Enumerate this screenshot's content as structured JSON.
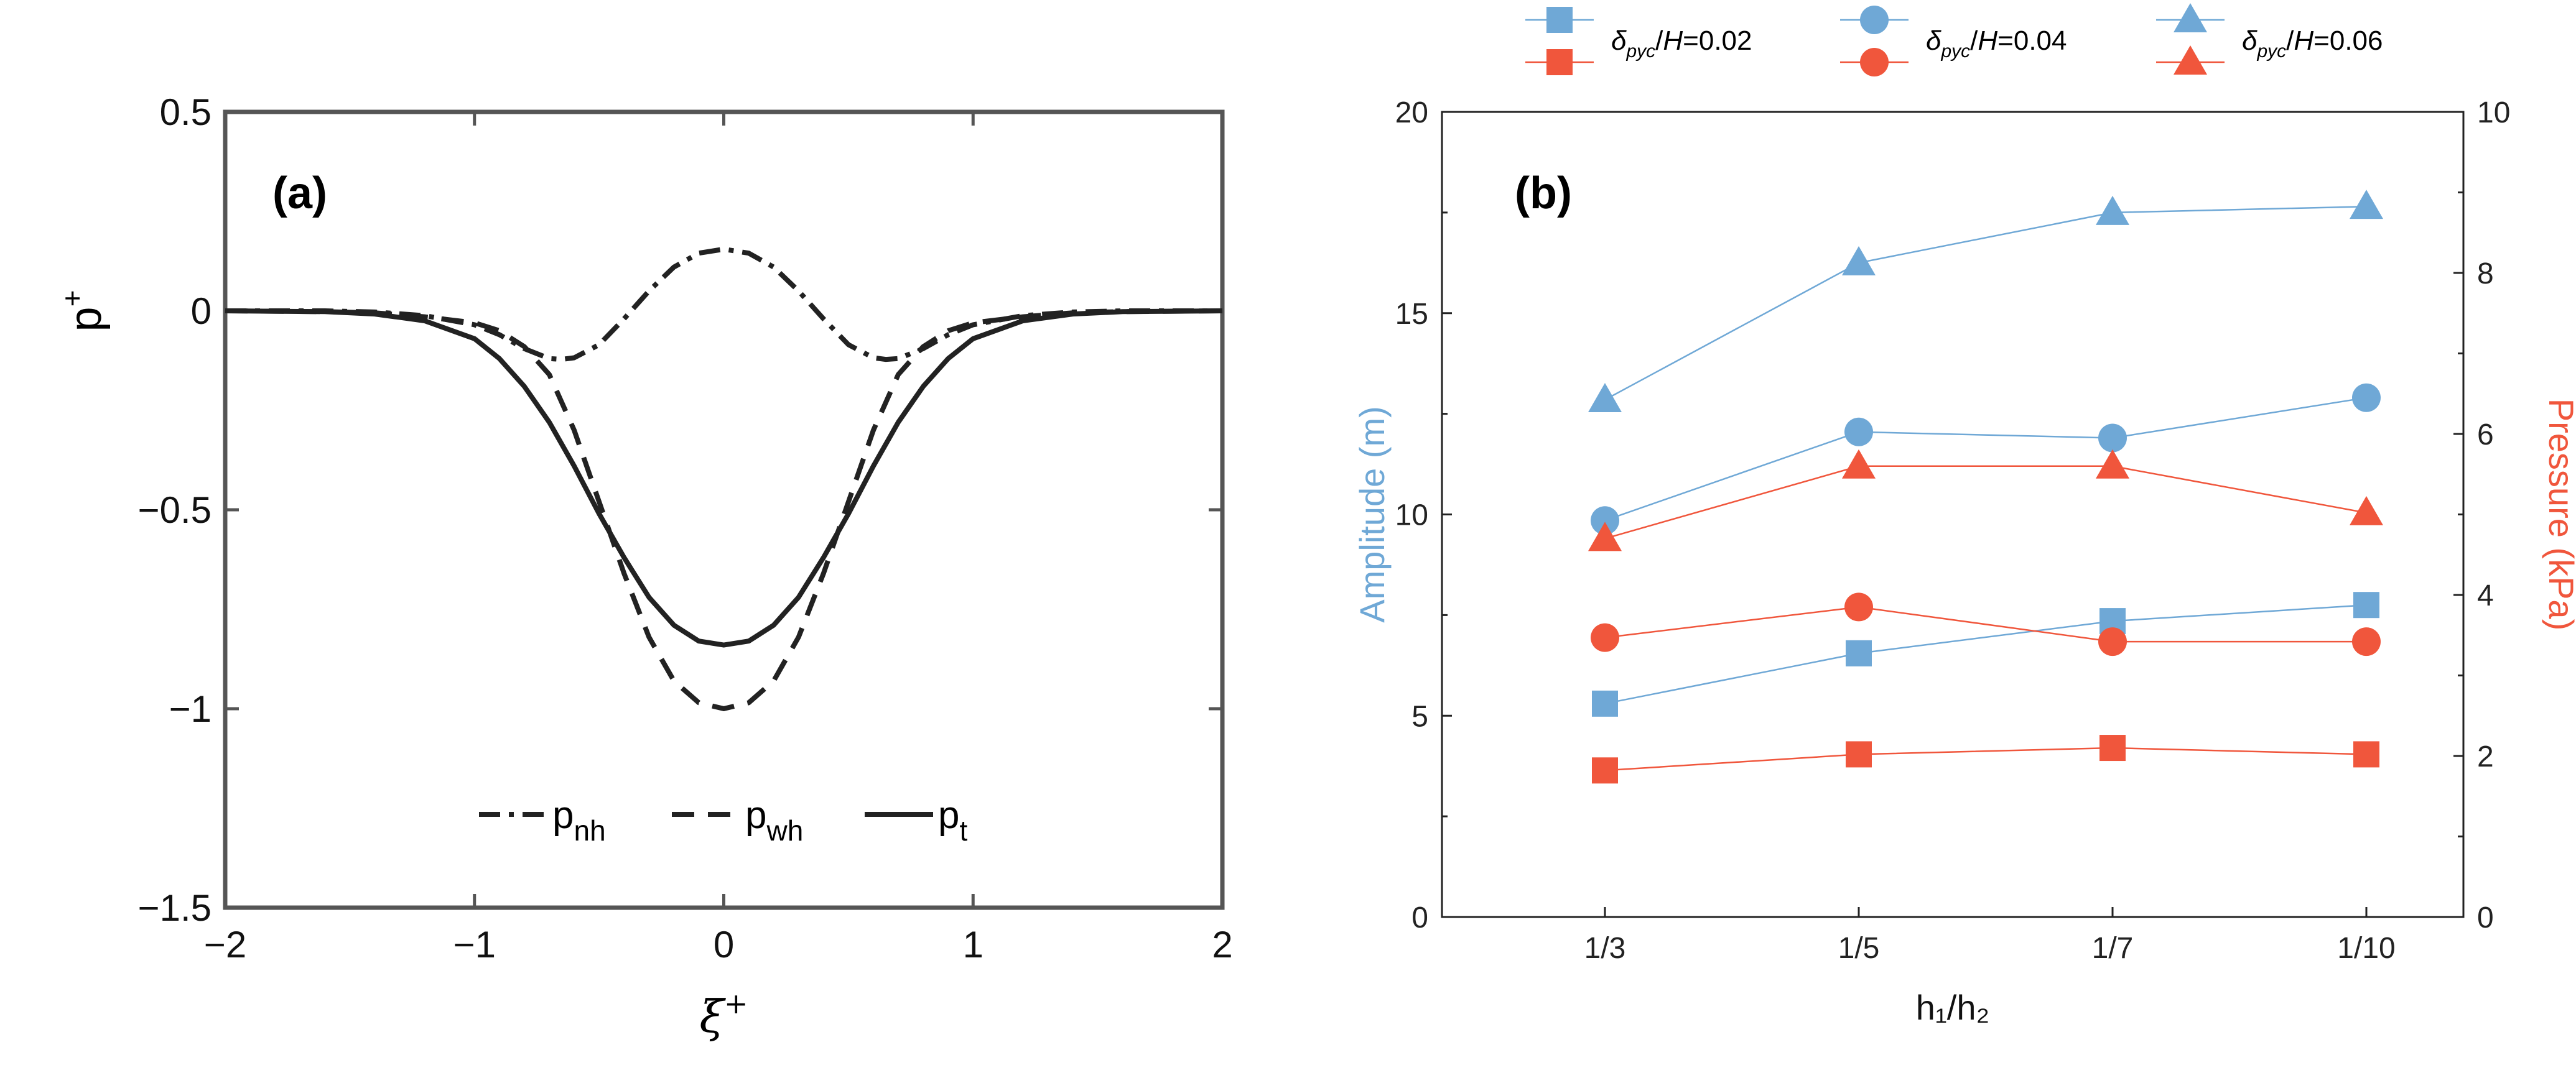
{
  "chart_data": [
    {
      "panel": "(a)",
      "type": "line",
      "xlabel": "ξ",
      "xlabel_sup": "+",
      "ylabel": "p",
      "ylabel_sup": "+",
      "xlim": [
        -2,
        2
      ],
      "ylim": [
        -1.5,
        0.5
      ],
      "xticks": [
        -2,
        -1,
        0,
        1,
        2
      ],
      "xtick_labels": [
        "−2",
        "−1",
        "0",
        "1",
        "2"
      ],
      "yticks": [
        0.5,
        0,
        -0.5,
        -1,
        -1.5
      ],
      "ytick_labels": [
        "0.5",
        "0",
        "−0.5",
        "−1",
        "−1.5"
      ],
      "legend": [
        {
          "base": "p",
          "sub": "nh"
        },
        {
          "base": "p",
          "sub": "wh"
        },
        {
          "base": "p",
          "sub": "t"
        }
      ],
      "series": [
        {
          "name": "p_nh",
          "style": "dashdot",
          "x": [
            -2,
            -1.6,
            -1.4,
            -1.2,
            -1.0,
            -0.9,
            -0.8,
            -0.7,
            -0.65,
            -0.6,
            -0.5,
            -0.4,
            -0.3,
            -0.2,
            -0.1,
            0,
            0.1,
            0.2,
            0.3,
            0.4,
            0.5,
            0.6,
            0.65,
            0.7,
            0.8,
            0.9,
            1.0,
            1.2,
            1.4,
            1.6,
            2
          ],
          "y": [
            0,
            0,
            -0.003,
            -0.012,
            -0.035,
            -0.06,
            -0.095,
            -0.12,
            -0.122,
            -0.118,
            -0.085,
            -0.02,
            0.05,
            0.11,
            0.145,
            0.155,
            0.145,
            0.11,
            0.05,
            -0.02,
            -0.085,
            -0.118,
            -0.122,
            -0.12,
            -0.095,
            -0.06,
            -0.035,
            -0.012,
            -0.003,
            0,
            0
          ]
        },
        {
          "name": "p_wh",
          "style": "dashed",
          "x": [
            -2,
            -1.6,
            -1.4,
            -1.2,
            -1.0,
            -0.9,
            -0.8,
            -0.7,
            -0.6,
            -0.5,
            -0.4,
            -0.3,
            -0.2,
            -0.1,
            0,
            0.1,
            0.2,
            0.3,
            0.4,
            0.5,
            0.6,
            0.7,
            0.8,
            0.9,
            1.0,
            1.2,
            1.4,
            1.6,
            2
          ],
          "y": [
            0,
            -0.002,
            -0.005,
            -0.015,
            -0.03,
            -0.05,
            -0.09,
            -0.16,
            -0.3,
            -0.48,
            -0.66,
            -0.82,
            -0.93,
            -0.985,
            -1.0,
            -0.985,
            -0.93,
            -0.82,
            -0.66,
            -0.48,
            -0.3,
            -0.16,
            -0.09,
            -0.05,
            -0.03,
            -0.015,
            -0.005,
            -0.002,
            0
          ]
        },
        {
          "name": "p_t",
          "style": "solid",
          "x": [
            -2,
            -1.6,
            -1.4,
            -1.2,
            -1.0,
            -0.9,
            -0.8,
            -0.7,
            -0.6,
            -0.5,
            -0.4,
            -0.3,
            -0.2,
            -0.1,
            0,
            0.1,
            0.2,
            0.3,
            0.4,
            0.5,
            0.6,
            0.7,
            0.8,
            0.9,
            1.0,
            1.2,
            1.4,
            1.6,
            2
          ],
          "y": [
            0,
            -0.002,
            -0.008,
            -0.025,
            -0.07,
            -0.12,
            -0.19,
            -0.28,
            -0.39,
            -0.51,
            -0.62,
            -0.72,
            -0.79,
            -0.83,
            -0.84,
            -0.83,
            -0.79,
            -0.72,
            -0.62,
            -0.51,
            -0.39,
            -0.28,
            -0.19,
            -0.12,
            -0.07,
            -0.025,
            -0.008,
            -0.002,
            0
          ]
        }
      ]
    },
    {
      "panel": "(b)",
      "type": "line",
      "xlabel": "h₁/h₂",
      "ylabel_left": "Amplitude (m)",
      "ylabel_right": "Pressure (kPa)",
      "categories": [
        "1/3",
        "1/5",
        "1/7",
        "1/10"
      ],
      "ylim_left": [
        0,
        20
      ],
      "ylim_right": [
        0,
        10
      ],
      "yticks_left": [
        0,
        5,
        10,
        15,
        20
      ],
      "yticks_right": [
        0,
        2,
        4,
        6,
        8,
        10
      ],
      "colors": {
        "amplitude": "#6fa8d6",
        "pressure": "#f0563c"
      },
      "legend_label_parts": {
        "delta": "δ",
        "sub": "pyc",
        "mid": "/",
        "H": "H"
      },
      "legend": [
        {
          "marker": "square",
          "value": "=0.02"
        },
        {
          "marker": "circle",
          "value": "=0.04"
        },
        {
          "marker": "triangle",
          "value": "=0.06"
        }
      ],
      "series": [
        {
          "name": "Amplitude δpyc/H=0.02",
          "axis": "left",
          "marker": "square",
          "color": "amplitude",
          "values": [
            5.3,
            6.55,
            7.35,
            7.75
          ]
        },
        {
          "name": "Amplitude δpyc/H=0.04",
          "axis": "left",
          "marker": "circle",
          "color": "amplitude",
          "values": [
            9.85,
            12.05,
            11.9,
            12.9
          ]
        },
        {
          "name": "Amplitude δpyc/H=0.06",
          "axis": "left",
          "marker": "triangle",
          "color": "amplitude",
          "values": [
            12.85,
            16.25,
            17.5,
            17.65
          ]
        },
        {
          "name": "Pressure δpyc/H=0.02",
          "axis": "right",
          "marker": "square",
          "color": "pressure",
          "values": [
            1.82,
            2.02,
            2.1,
            2.02
          ]
        },
        {
          "name": "Pressure δpyc/H=0.04",
          "axis": "right",
          "marker": "circle",
          "color": "pressure",
          "values": [
            3.47,
            3.85,
            3.42,
            3.42
          ]
        },
        {
          "name": "Pressure δpyc/H=0.06",
          "axis": "right",
          "marker": "triangle",
          "color": "pressure",
          "values": [
            4.7,
            5.6,
            5.6,
            5.02
          ]
        }
      ]
    }
  ]
}
